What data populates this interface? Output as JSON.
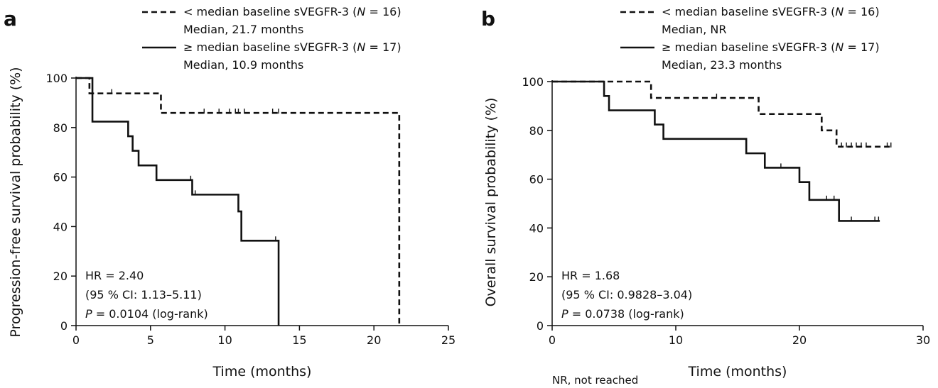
{
  "chart_data": [
    {
      "panel": "a",
      "type": "line",
      "xlabel": "Time (months)",
      "ylabel": "Progression-free survival probability (%)",
      "xlim": [
        0,
        25
      ],
      "ylim": [
        0,
        100
      ],
      "xticks": [
        0,
        5,
        10,
        15,
        20,
        25
      ],
      "yticks": [
        0,
        20,
        40,
        60,
        80,
        100
      ],
      "legend": [
        {
          "style": "dashed",
          "pre": "< median baseline sVEGFR-3 (",
          "n_label": "N",
          "post": " = 16)",
          "median": "Median, 21.7 months"
        },
        {
          "style": "solid",
          "pre": "≥ median baseline sVEGFR-3 (",
          "n_label": "N",
          "post": " = 17)",
          "median": "Median, 10.9 months"
        }
      ],
      "stats": {
        "hr": "HR = 2.40",
        "ci": "(95 % CI: 1.13–5.11)",
        "p_label": "P",
        "p_value": " = 0.0104 (log-rank)"
      },
      "series": [
        {
          "style": "dashed",
          "steps": [
            [
              0,
              100
            ],
            [
              0.9,
              93.8
            ],
            [
              5.7,
              85.9
            ],
            [
              21.7,
              85.9
            ],
            [
              21.7,
              0
            ]
          ],
          "censors": [
            [
              2.4,
              93.8
            ],
            [
              8.6,
              85.9
            ],
            [
              9.6,
              85.9
            ],
            [
              10.3,
              85.9
            ],
            [
              10.7,
              85.9
            ],
            [
              10.9,
              85.9
            ],
            [
              11.3,
              85.9
            ],
            [
              13.2,
              85.9
            ],
            [
              13.6,
              85.9
            ]
          ]
        },
        {
          "style": "solid",
          "steps": [
            [
              0,
              100
            ],
            [
              1.1,
              82.4
            ],
            [
              3.5,
              76.5
            ],
            [
              3.8,
              70.6
            ],
            [
              4.2,
              64.7
            ],
            [
              5.4,
              58.8
            ],
            [
              7.8,
              52.9
            ],
            [
              10.9,
              46.1
            ],
            [
              11.1,
              34.3
            ],
            [
              13.6,
              34.3
            ],
            [
              13.6,
              0
            ]
          ],
          "censors": [
            [
              7.7,
              58.8
            ],
            [
              8.0,
              52.9
            ],
            [
              10.9,
              46.1
            ],
            [
              13.4,
              34.3
            ]
          ]
        }
      ]
    },
    {
      "panel": "b",
      "type": "line",
      "xlabel": "Time (months)",
      "ylabel": "Overall survival probability (%)",
      "xlim": [
        0,
        30
      ],
      "ylim": [
        0,
        100
      ],
      "xticks": [
        0,
        10,
        20,
        30
      ],
      "yticks": [
        0,
        20,
        40,
        60,
        80,
        100
      ],
      "legend": [
        {
          "style": "dashed",
          "pre": "< median baseline sVEGFR-3 (",
          "n_label": "N",
          "post": " = 16)",
          "median": "Median, NR"
        },
        {
          "style": "solid",
          "pre": "≥ median baseline sVEGFR-3 (",
          "n_label": "N",
          "post": " = 17)",
          "median": "Median, 23.3 months"
        }
      ],
      "stats": {
        "hr": "HR = 1.68",
        "ci": "(95 % CI: 0.9828–3.04)",
        "p_label": "P",
        "p_value": " = 0.0738 (log-rank)"
      },
      "series": [
        {
          "style": "dashed",
          "steps": [
            [
              0,
              100
            ],
            [
              8.0,
              93.3
            ],
            [
              16.7,
              86.7
            ],
            [
              21.8,
              80.0
            ],
            [
              23.0,
              73.3
            ],
            [
              27.5,
              73.3
            ]
          ],
          "censors": [
            [
              13.3,
              93.3
            ],
            [
              23.4,
              73.3
            ],
            [
              23.8,
              73.3
            ],
            [
              24.2,
              73.3
            ],
            [
              24.6,
              73.3
            ],
            [
              25.0,
              73.3
            ],
            [
              25.4,
              73.3
            ],
            [
              27.1,
              73.3
            ],
            [
              27.4,
              73.3
            ]
          ]
        },
        {
          "style": "solid",
          "steps": [
            [
              0,
              100
            ],
            [
              4.2,
              94.1
            ],
            [
              4.6,
              88.2
            ],
            [
              8.3,
              82.4
            ],
            [
              9.0,
              76.5
            ],
            [
              15.7,
              70.6
            ],
            [
              17.2,
              64.7
            ],
            [
              20.0,
              58.8
            ],
            [
              20.8,
              51.5
            ],
            [
              23.2,
              42.9
            ],
            [
              26.5,
              42.9
            ]
          ],
          "censors": [
            [
              18.5,
              64.7
            ],
            [
              22.2,
              51.5
            ],
            [
              22.8,
              51.5
            ],
            [
              24.2,
              42.9
            ],
            [
              26.1,
              42.9
            ],
            [
              26.4,
              42.9
            ]
          ]
        }
      ]
    }
  ],
  "footnote": "NR, not reached"
}
